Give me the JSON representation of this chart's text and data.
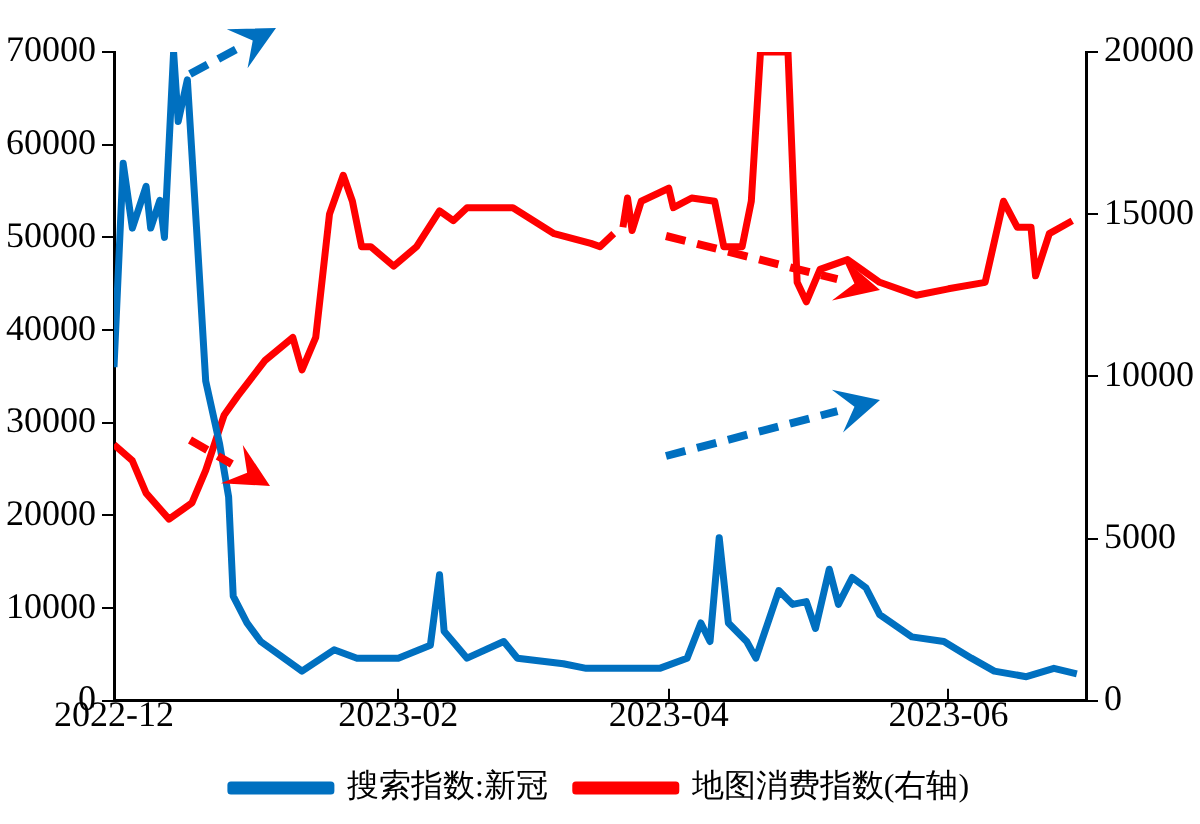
{
  "chart_data": {
    "type": "line",
    "xlim": [
      "2022-12",
      "2023-07"
    ],
    "xticks": [
      "2022-12",
      "2023-02",
      "2023-04",
      "2023-06"
    ],
    "ylim": [
      0,
      70000
    ],
    "yticks": [
      0,
      10000,
      20000,
      30000,
      40000,
      50000,
      60000,
      70000
    ],
    "y2lim": [
      0,
      20000
    ],
    "y2ticks": [
      0,
      5000,
      10000,
      15000,
      20000
    ],
    "grid": false,
    "legend": "bottom",
    "marker": "none",
    "line_style": "solid",
    "series": [
      {
        "name": "搜索指数:新冠",
        "color": "#0070c0",
        "x": [
          "2022-12-01",
          "2022-12-03",
          "2022-12-05",
          "2022-12-08",
          "2022-12-09",
          "2022-12-11",
          "2022-12-12",
          "2022-12-14",
          "2022-12-15",
          "2022-12-17",
          "2022-12-19",
          "2022-12-21",
          "2022-12-24",
          "2022-12-26",
          "2022-12-27",
          "2022-12-30",
          "2023-01-02",
          "2023-01-11",
          "2023-01-18",
          "2023-01-23",
          "2023-02-01",
          "2023-02-08",
          "2023-02-10",
          "2023-02-11",
          "2023-02-16",
          "2023-02-24",
          "2023-02-27",
          "2023-03-09",
          "2023-03-14",
          "2023-03-17",
          "2023-03-30",
          "2023-04-05",
          "2023-04-08",
          "2023-04-10",
          "2023-04-12",
          "2023-04-14",
          "2023-04-18",
          "2023-04-20",
          "2023-04-25",
          "2023-04-28",
          "2023-05-01",
          "2023-05-03",
          "2023-05-06",
          "2023-05-08",
          "2023-05-11",
          "2023-05-14",
          "2023-05-17",
          "2023-05-24",
          "2023-05-31",
          "2023-06-06",
          "2023-06-11",
          "2023-06-18",
          "2023-06-24",
          "2023-06-29"
        ],
        "values": [
          36000,
          58000,
          51000,
          55500,
          51000,
          54000,
          50000,
          70000,
          62500,
          67000,
          51000,
          34500,
          27800,
          22000,
          11300,
          8400,
          6400,
          3200,
          5500,
          4600,
          4600,
          6000,
          13600,
          7500,
          4600,
          6400,
          4600,
          4000,
          3500,
          3500,
          3500,
          4600,
          8400,
          6400,
          17600,
          8400,
          6400,
          4600,
          11900,
          10400,
          10700,
          7800,
          14200,
          10400,
          13300,
          12200,
          9300,
          6900,
          6400,
          4600,
          3200,
          2600,
          3500,
          2900
        ]
      },
      {
        "name": "地图消费指数(右轴)",
        "color": "#ff0000",
        "axis": "y2",
        "x": [
          "2022-12-01",
          "2022-12-05",
          "2022-12-08",
          "2022-12-13",
          "2022-12-18",
          "2022-12-21",
          "2022-12-25",
          "2022-12-28",
          "2023-01-03",
          "2023-01-09",
          "2023-01-11",
          "2023-01-14",
          "2023-01-17",
          "2023-01-20",
          "2023-01-22",
          "2023-01-24",
          "2023-01-26",
          "2023-01-31",
          "2023-02-05",
          "2023-02-10",
          "2023-02-13",
          "2023-02-16",
          "2023-02-26",
          "2023-03-07",
          "2023-03-15",
          "2023-03-17",
          "2023-03-20",
          "2023-03-21",
          "2023-03-22",
          "2023-03-23",
          "2023-03-24",
          "2023-03-26",
          "2023-04-01",
          "2023-04-02",
          "2023-04-06",
          "2023-04-11",
          "2023-04-13",
          "2023-04-17",
          "2023-04-19",
          "2023-04-21",
          "2023-04-27",
          "2023-04-29",
          "2023-05-01",
          "2023-05-04",
          "2023-05-10",
          "2023-05-17",
          "2023-05-25",
          "2023-06-01",
          "2023-06-09",
          "2023-06-13",
          "2023-06-16",
          "2023-06-19",
          "2023-06-20",
          "2023-06-23",
          "2023-06-28"
        ],
        "values": [
          7900,
          7400,
          6400,
          5600,
          6100,
          7100,
          8800,
          9400,
          10500,
          11200,
          10200,
          11200,
          15000,
          16200,
          15400,
          14000,
          14000,
          13400,
          14000,
          15100,
          14800,
          15200,
          15200,
          14400,
          14100,
          14000,
          14400,
          null,
          14600,
          15500,
          14500,
          15400,
          15800,
          15200,
          15500,
          15400,
          14000,
          14000,
          15400,
          20000,
          20000,
          12900,
          12300,
          13300,
          13600,
          12900,
          12500,
          12700,
          12900,
          15400,
          14600,
          14600,
          13100,
          14400,
          14800
        ]
      }
    ]
  }
}
